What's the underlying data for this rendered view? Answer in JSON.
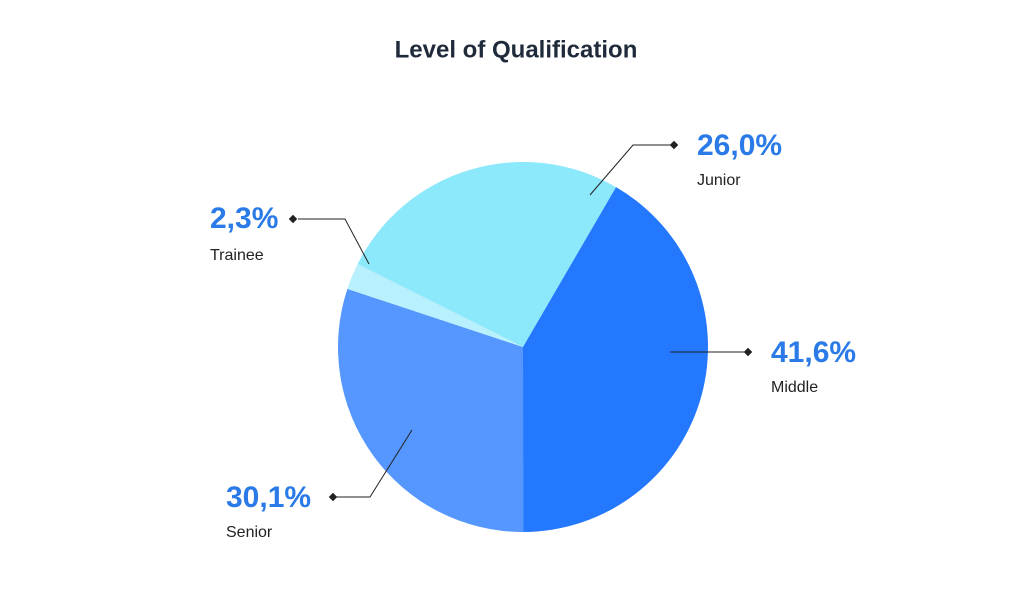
{
  "chart_data": {
    "type": "pie",
    "title": "Level of Qualification",
    "categories": [
      "Junior",
      "Middle",
      "Senior",
      "Trainee"
    ],
    "values": [
      26.0,
      41.6,
      30.1,
      2.3
    ],
    "value_labels": [
      "26,0%",
      "41,6%",
      "30,1%",
      "2,3%"
    ],
    "colors": [
      "#8be9fb",
      "#2478fe",
      "#5597fe",
      "#b9f0fd"
    ]
  }
}
